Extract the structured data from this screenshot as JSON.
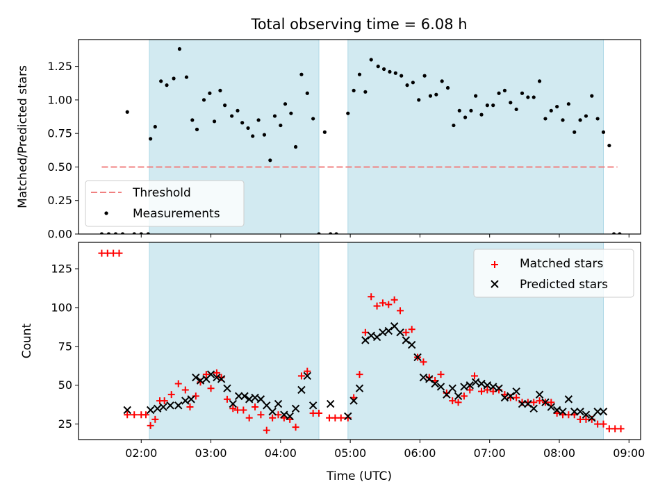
{
  "chart_data": [
    {
      "type": "scatter",
      "title": "Total observing time = 6.08 h",
      "xlabel": "",
      "ylabel": "Matched/Predicted stars",
      "xlim": [
        "01:06",
        "09:10"
      ],
      "ylim": [
        0,
        1.45
      ],
      "y_ticks": [
        0,
        0.25,
        0.5,
        0.75,
        1.0,
        1.25
      ],
      "y_tick_labels": [
        "0.00",
        "0.25",
        "0.50",
        "0.75",
        "1.00",
        "1.25"
      ],
      "legend_position": "lower-left",
      "shaded_intervals": [
        [
          "02:07",
          "04:33"
        ],
        [
          "04:58",
          "08:38"
        ]
      ],
      "shade_color": "#add8e6",
      "threshold": {
        "name": "Threshold",
        "value": 0.5,
        "x_range": [
          "01:26",
          "08:50"
        ],
        "color": "#f08080",
        "style": "dashed"
      },
      "series": [
        {
          "name": "Measurements",
          "color": "#000000",
          "points": [
            [
              "01:26",
              0.0
            ],
            [
              "01:32",
              0.0
            ],
            [
              "01:38",
              0.0
            ],
            [
              "01:44",
              0.0
            ],
            [
              "01:48",
              0.91
            ],
            [
              "01:54",
              0.0
            ],
            [
              "02:00",
              0.0
            ],
            [
              "02:06",
              0.0
            ],
            [
              "02:08",
              0.71
            ],
            [
              "02:12",
              0.8
            ],
            [
              "02:17",
              1.14
            ],
            [
              "02:22",
              1.11
            ],
            [
              "02:28",
              1.16
            ],
            [
              "02:33",
              1.38
            ],
            [
              "02:39",
              1.17
            ],
            [
              "02:44",
              0.85
            ],
            [
              "02:48",
              0.78
            ],
            [
              "02:54",
              1.0
            ],
            [
              "02:59",
              1.05
            ],
            [
              "03:03",
              0.84
            ],
            [
              "03:08",
              1.07
            ],
            [
              "03:12",
              0.96
            ],
            [
              "03:18",
              0.88
            ],
            [
              "03:23",
              0.92
            ],
            [
              "03:27",
              0.83
            ],
            [
              "03:32",
              0.79
            ],
            [
              "03:36",
              0.73
            ],
            [
              "03:41",
              0.85
            ],
            [
              "03:46",
              0.74
            ],
            [
              "03:51",
              0.55
            ],
            [
              "03:55",
              0.88
            ],
            [
              "04:00",
              0.81
            ],
            [
              "04:04",
              0.97
            ],
            [
              "04:09",
              0.9
            ],
            [
              "04:13",
              0.65
            ],
            [
              "04:18",
              1.19
            ],
            [
              "04:23",
              1.05
            ],
            [
              "04:28",
              0.86
            ],
            [
              "04:33",
              0.0
            ],
            [
              "04:43",
              0.0
            ],
            [
              "04:48",
              0.0
            ],
            [
              "04:38",
              0.76
            ],
            [
              "04:58",
              0.9
            ],
            [
              "05:03",
              1.07
            ],
            [
              "05:08",
              1.19
            ],
            [
              "05:13",
              1.06
            ],
            [
              "05:18",
              1.3
            ],
            [
              "05:24",
              1.25
            ],
            [
              "05:29",
              1.23
            ],
            [
              "05:34",
              1.21
            ],
            [
              "05:39",
              1.2
            ],
            [
              "05:44",
              1.18
            ],
            [
              "05:49",
              1.11
            ],
            [
              "05:54",
              1.13
            ],
            [
              "05:59",
              1.0
            ],
            [
              "06:04",
              1.18
            ],
            [
              "06:09",
              1.03
            ],
            [
              "06:14",
              1.04
            ],
            [
              "06:19",
              1.14
            ],
            [
              "06:24",
              1.09
            ],
            [
              "06:29",
              0.81
            ],
            [
              "06:34",
              0.92
            ],
            [
              "06:39",
              0.87
            ],
            [
              "06:44",
              0.92
            ],
            [
              "06:48",
              1.03
            ],
            [
              "06:53",
              0.89
            ],
            [
              "06:58",
              0.96
            ],
            [
              "07:03",
              0.96
            ],
            [
              "07:08",
              1.05
            ],
            [
              "07:13",
              1.07
            ],
            [
              "07:18",
              0.98
            ],
            [
              "07:23",
              0.93
            ],
            [
              "07:28",
              1.05
            ],
            [
              "07:33",
              1.02
            ],
            [
              "07:38",
              1.02
            ],
            [
              "07:43",
              1.14
            ],
            [
              "07:48",
              0.86
            ],
            [
              "07:53",
              0.92
            ],
            [
              "07:58",
              0.95
            ],
            [
              "08:03",
              0.85
            ],
            [
              "08:08",
              0.97
            ],
            [
              "08:13",
              0.76
            ],
            [
              "08:18",
              0.85
            ],
            [
              "08:23",
              0.88
            ],
            [
              "08:28",
              1.03
            ],
            [
              "08:33",
              0.86
            ],
            [
              "08:38",
              0.76
            ],
            [
              "08:43",
              0.66
            ],
            [
              "08:47",
              0.0
            ],
            [
              "08:52",
              0.0
            ]
          ]
        }
      ]
    },
    {
      "type": "scatter",
      "title": "",
      "xlabel": "Time (UTC)",
      "ylabel": "Count",
      "xlim": [
        "01:06",
        "09:10"
      ],
      "ylim": [
        15,
        142
      ],
      "x_ticks": [
        "02:00",
        "03:00",
        "04:00",
        "05:00",
        "06:00",
        "07:00",
        "08:00",
        "09:00"
      ],
      "y_ticks": [
        25,
        50,
        75,
        100,
        125
      ],
      "legend_position": "upper-right",
      "shaded_intervals": [
        [
          "02:07",
          "04:33"
        ],
        [
          "04:58",
          "08:38"
        ]
      ],
      "shade_color": "#add8e6",
      "series": [
        {
          "name": "Matched stars",
          "marker": "plus",
          "color": "#ff0000",
          "points": [
            [
              "01:26",
              135
            ],
            [
              "01:31",
              135
            ],
            [
              "01:36",
              135
            ],
            [
              "01:41",
              135
            ],
            [
              "01:48",
              31
            ],
            [
              "01:54",
              31
            ],
            [
              "02:00",
              31
            ],
            [
              "02:04",
              31
            ],
            [
              "02:08",
              24
            ],
            [
              "02:12",
              28
            ],
            [
              "02:16",
              40
            ],
            [
              "02:20",
              40
            ],
            [
              "02:26",
              44
            ],
            [
              "02:32",
              51
            ],
            [
              "02:38",
              47
            ],
            [
              "02:42",
              36
            ],
            [
              "02:47",
              43
            ],
            [
              "02:51",
              52
            ],
            [
              "02:56",
              57
            ],
            [
              "03:00",
              48
            ],
            [
              "03:05",
              58
            ],
            [
              "03:09",
              55
            ],
            [
              "03:14",
              41
            ],
            [
              "03:19",
              35
            ],
            [
              "03:23",
              34
            ],
            [
              "03:28",
              34
            ],
            [
              "03:33",
              29
            ],
            [
              "03:38",
              36
            ],
            [
              "03:43",
              31
            ],
            [
              "03:48",
              21
            ],
            [
              "03:53",
              29
            ],
            [
              "03:58",
              31
            ],
            [
              "04:03",
              29
            ],
            [
              "04:08",
              28
            ],
            [
              "04:13",
              23
            ],
            [
              "04:18",
              56
            ],
            [
              "04:23",
              59
            ],
            [
              "04:28",
              32
            ],
            [
              "04:33",
              32
            ],
            [
              "04:42",
              29
            ],
            [
              "04:47",
              29
            ],
            [
              "04:52",
              29
            ],
            [
              "04:58",
              29
            ],
            [
              "05:03",
              42
            ],
            [
              "05:08",
              57
            ],
            [
              "05:13",
              84
            ],
            [
              "05:18",
              107
            ],
            [
              "05:23",
              101
            ],
            [
              "05:28",
              103
            ],
            [
              "05:33",
              102
            ],
            [
              "05:38",
              105
            ],
            [
              "05:43",
              98
            ],
            [
              "05:48",
              84
            ],
            [
              "05:53",
              86
            ],
            [
              "05:58",
              68
            ],
            [
              "06:03",
              65
            ],
            [
              "06:08",
              55
            ],
            [
              "06:13",
              53
            ],
            [
              "06:18",
              57
            ],
            [
              "06:23",
              45
            ],
            [
              "06:28",
              40
            ],
            [
              "06:33",
              39
            ],
            [
              "06:38",
              43
            ],
            [
              "06:43",
              47
            ],
            [
              "06:47",
              56
            ],
            [
              "06:53",
              46
            ],
            [
              "06:58",
              47
            ],
            [
              "07:03",
              46
            ],
            [
              "07:08",
              47
            ],
            [
              "07:13",
              44
            ],
            [
              "07:18",
              42
            ],
            [
              "07:23",
              42
            ],
            [
              "07:28",
              39
            ],
            [
              "07:33",
              39
            ],
            [
              "07:38",
              39
            ],
            [
              "07:43",
              40
            ],
            [
              "07:48",
              39
            ],
            [
              "07:53",
              39
            ],
            [
              "07:58",
              32
            ],
            [
              "08:03",
              31
            ],
            [
              "08:08",
              31
            ],
            [
              "08:13",
              31
            ],
            [
              "08:18",
              28
            ],
            [
              "08:23",
              28
            ],
            [
              "08:28",
              28
            ],
            [
              "08:33",
              25
            ],
            [
              "08:38",
              25
            ],
            [
              "08:43",
              22
            ],
            [
              "08:48",
              22
            ],
            [
              "08:53",
              22
            ]
          ]
        },
        {
          "name": "Predicted stars",
          "marker": "x",
          "color": "#000000",
          "points": [
            [
              "01:48",
              34
            ],
            [
              "02:08",
              34
            ],
            [
              "02:14",
              35
            ],
            [
              "02:19",
              36
            ],
            [
              "02:25",
              37
            ],
            [
              "02:32",
              37
            ],
            [
              "02:38",
              40
            ],
            [
              "02:43",
              41
            ],
            [
              "02:47",
              55
            ],
            [
              "02:51",
              53
            ],
            [
              "02:56",
              54
            ],
            [
              "03:00",
              57
            ],
            [
              "03:05",
              55
            ],
            [
              "03:09",
              54
            ],
            [
              "03:14",
              48
            ],
            [
              "03:19",
              38
            ],
            [
              "03:24",
              43
            ],
            [
              "03:29",
              43
            ],
            [
              "03:33",
              41
            ],
            [
              "03:38",
              42
            ],
            [
              "03:43",
              41
            ],
            [
              "03:48",
              37
            ],
            [
              "03:53",
              33
            ],
            [
              "03:58",
              38
            ],
            [
              "04:03",
              31
            ],
            [
              "04:08",
              30
            ],
            [
              "04:13",
              35
            ],
            [
              "04:18",
              47
            ],
            [
              "04:23",
              56
            ],
            [
              "04:28",
              37
            ],
            [
              "04:43",
              38
            ],
            [
              "04:58",
              30
            ],
            [
              "05:03",
              40
            ],
            [
              "05:08",
              48
            ],
            [
              "05:13",
              79
            ],
            [
              "05:18",
              82
            ],
            [
              "05:23",
              81
            ],
            [
              "05:28",
              84
            ],
            [
              "05:33",
              85
            ],
            [
              "05:38",
              88
            ],
            [
              "05:43",
              84
            ],
            [
              "05:48",
              79
            ],
            [
              "05:53",
              76
            ],
            [
              "05:58",
              68
            ],
            [
              "06:03",
              55
            ],
            [
              "06:08",
              54
            ],
            [
              "06:13",
              51
            ],
            [
              "06:18",
              49
            ],
            [
              "06:23",
              44
            ],
            [
              "06:28",
              48
            ],
            [
              "06:33",
              43
            ],
            [
              "06:38",
              49
            ],
            [
              "06:43",
              50
            ],
            [
              "06:48",
              52
            ],
            [
              "06:53",
              51
            ],
            [
              "06:58",
              50
            ],
            [
              "07:03",
              49
            ],
            [
              "07:08",
              48
            ],
            [
              "07:13",
              42
            ],
            [
              "07:18",
              43
            ],
            [
              "07:23",
              46
            ],
            [
              "07:28",
              38
            ],
            [
              "07:33",
              38
            ],
            [
              "07:38",
              35
            ],
            [
              "07:43",
              44
            ],
            [
              "07:48",
              39
            ],
            [
              "07:53",
              36
            ],
            [
              "07:58",
              34
            ],
            [
              "08:03",
              33
            ],
            [
              "08:08",
              41
            ],
            [
              "08:13",
              33
            ],
            [
              "08:18",
              33
            ],
            [
              "08:23",
              31
            ],
            [
              "08:28",
              29
            ],
            [
              "08:33",
              33
            ],
            [
              "08:38",
              33
            ]
          ]
        }
      ]
    }
  ]
}
